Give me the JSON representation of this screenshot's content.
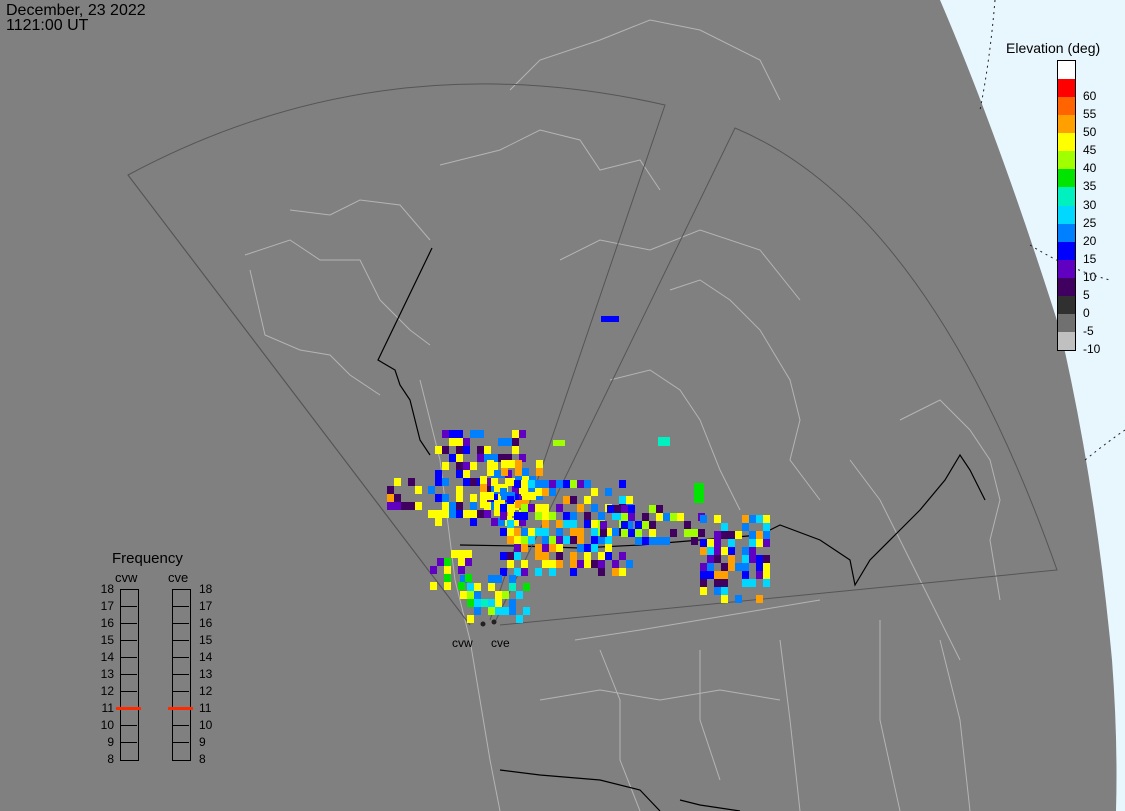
{
  "header": {
    "date": "December, 23 2022",
    "time": "1121:00 UT"
  },
  "colorbar": {
    "title": "Elevation (deg)",
    "entries": [
      {
        "label": "",
        "color": "#ffffff"
      },
      {
        "label": "60",
        "color": "#ff0000"
      },
      {
        "label": "55",
        "color": "#ff6400"
      },
      {
        "label": "50",
        "color": "#ffa000"
      },
      {
        "label": "45",
        "color": "#ffff00"
      },
      {
        "label": "40",
        "color": "#a0ff00"
      },
      {
        "label": "35",
        "color": "#00e400"
      },
      {
        "label": "30",
        "color": "#00f0c0"
      },
      {
        "label": "25",
        "color": "#00d8ff"
      },
      {
        "label": "20",
        "color": "#0080ff"
      },
      {
        "label": "15",
        "color": "#0000ff"
      },
      {
        "label": "10",
        "color": "#6000c0"
      },
      {
        "label": "5",
        "color": "#400060"
      },
      {
        "label": "0",
        "color": "#303030"
      },
      {
        "label": "-5",
        "color": "#707070"
      },
      {
        "label": "-10",
        "color": "#c0c0c0"
      }
    ]
  },
  "frequency": {
    "title": "Frequency",
    "radars": [
      {
        "name": "cvw",
        "value": 11
      },
      {
        "name": "cve",
        "value": 11
      }
    ],
    "scale": [
      "18",
      "17",
      "16",
      "15",
      "14",
      "13",
      "12",
      "11",
      "10",
      "9",
      "8"
    ],
    "marker_color": "#ff2a00"
  },
  "sites": [
    {
      "name": "cvw"
    },
    {
      "name": "cve"
    }
  ],
  "map_colors": {
    "background": "#808080",
    "land_outline": "#b4b4b4",
    "fov": "#555555",
    "night_terminator": "#e8f6fd"
  }
}
